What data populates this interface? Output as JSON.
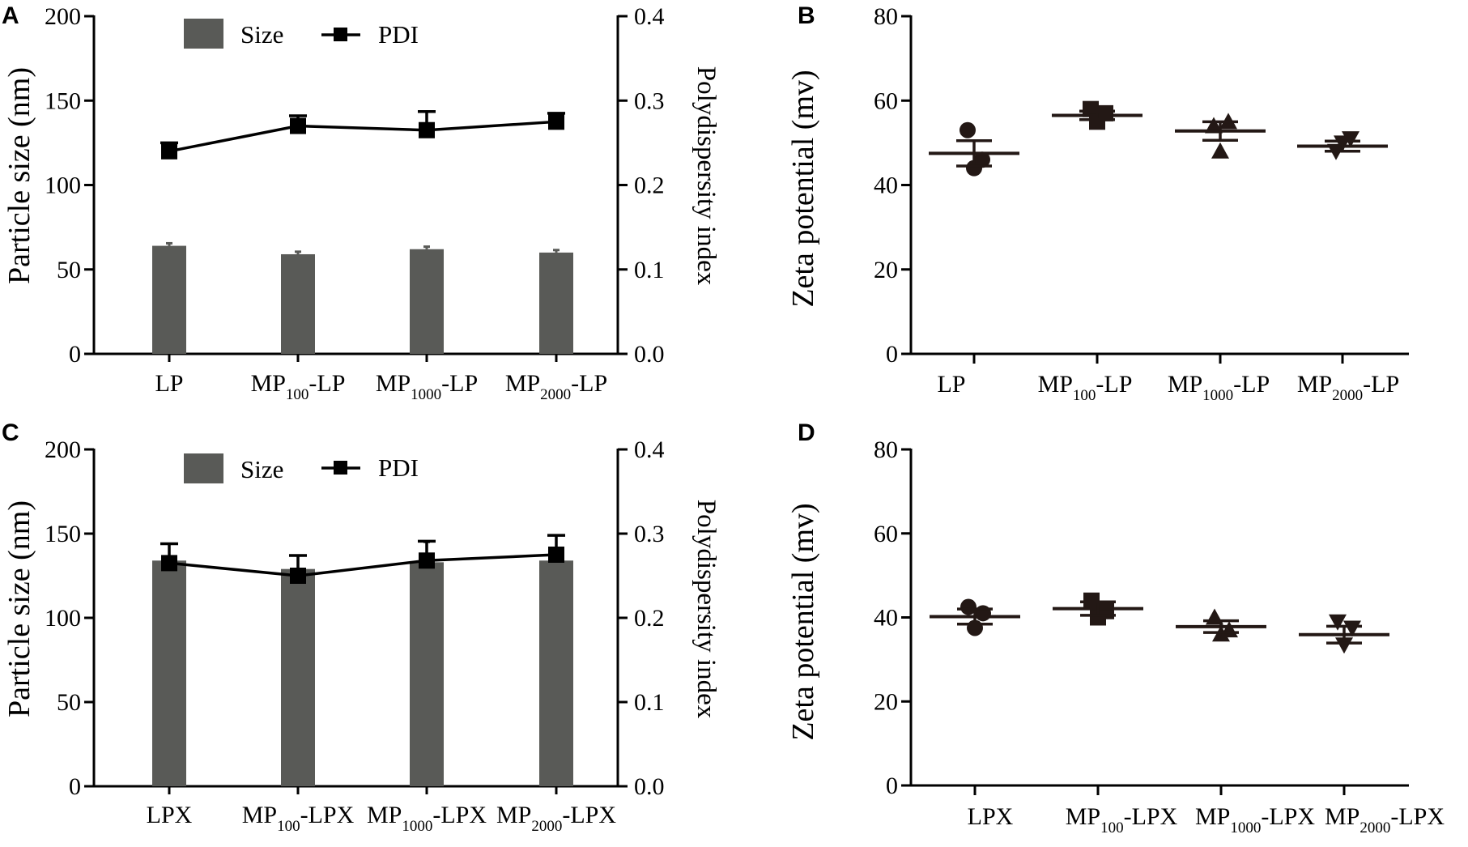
{
  "colors": {
    "bar": "#595a57",
    "line": "#000000",
    "marker": "#231815",
    "background": "#ffffff"
  },
  "chart_data": [
    {
      "panel": "A",
      "type": "bar",
      "categories": [
        {
          "main": "LP",
          "sub": "",
          "suffix": ""
        },
        {
          "main": "MP",
          "sub": "100",
          "suffix": "-LP"
        },
        {
          "main": "MP",
          "sub": "1000",
          "suffix": "-LP"
        },
        {
          "main": "MP",
          "sub": "2000",
          "suffix": "-LP"
        }
      ],
      "series": [
        {
          "name": "Size",
          "axis": "left",
          "kind": "bar",
          "values": [
            64,
            59,
            62,
            60
          ],
          "errors": [
            1.5,
            1.5,
            1.5,
            1.5
          ]
        },
        {
          "name": "PDI",
          "axis": "right",
          "kind": "line",
          "values": [
            0.24,
            0.27,
            0.265,
            0.275
          ],
          "errors": [
            0.01,
            0.012,
            0.022,
            0.01
          ]
        }
      ],
      "ylabel": "Particle size (nm)",
      "ylabel_right": "Polydispersity index",
      "ylim": [
        0,
        200
      ],
      "yticks": [
        "0",
        "50",
        "100",
        "150",
        "200"
      ],
      "ylim_right": [
        0,
        0.4
      ],
      "yticks_right": [
        "0.0",
        "0.1",
        "0.2",
        "0.3",
        "0.4"
      ],
      "legend": [
        "Size",
        "PDI"
      ],
      "legend_position": "top-left"
    },
    {
      "panel": "B",
      "type": "scatter",
      "categories": [
        {
          "main": "LP",
          "sub": "",
          "suffix": ""
        },
        {
          "main": "MP",
          "sub": "100",
          "suffix": "-LP"
        },
        {
          "main": "MP",
          "sub": "1000",
          "suffix": "-LP"
        },
        {
          "main": "MP",
          "sub": "2000",
          "suffix": "-LP"
        }
      ],
      "markers": [
        "circle",
        "square",
        "triangle-up",
        "triangle-down"
      ],
      "points": [
        [
          53,
          44,
          46
        ],
        [
          58,
          55,
          57
        ],
        [
          54,
          48,
          55
        ],
        [
          48,
          50,
          51
        ]
      ],
      "means": [
        47.5,
        56.5,
        52.8,
        49.2
      ],
      "errors": [
        3,
        1,
        2.2,
        1.2
      ],
      "ylabel": "Zeta potential (mv)",
      "ylim": [
        0,
        80
      ],
      "yticks": [
        "0",
        "20",
        "40",
        "60",
        "80"
      ]
    },
    {
      "panel": "C",
      "type": "bar",
      "categories": [
        {
          "main": "LPX",
          "sub": "",
          "suffix": ""
        },
        {
          "main": "MP",
          "sub": "100",
          "suffix": "-LPX"
        },
        {
          "main": "MP",
          "sub": "1000",
          "suffix": "-LPX"
        },
        {
          "main": "MP",
          "sub": "2000",
          "suffix": "-LPX"
        }
      ],
      "series": [
        {
          "name": "Size",
          "axis": "left",
          "kind": "bar",
          "values": [
            134,
            129,
            133,
            134
          ],
          "errors": [
            10,
            8,
            12,
            15
          ]
        },
        {
          "name": "PDI",
          "axis": "right",
          "kind": "line",
          "values": [
            0.265,
            0.25,
            0.268,
            0.275
          ],
          "errors": [
            0.023,
            0.024,
            0.023,
            0.023
          ]
        }
      ],
      "ylabel": "Particle size (nm)",
      "ylabel_right": "Polydispersity index",
      "ylim": [
        0,
        200
      ],
      "yticks": [
        "0",
        "50",
        "100",
        "150",
        "200"
      ],
      "ylim_right": [
        0,
        0.4
      ],
      "yticks_right": [
        "0.0",
        "0.1",
        "0.2",
        "0.3",
        "0.4"
      ],
      "legend": [
        "Size",
        "PDI"
      ],
      "legend_position": "top-left"
    },
    {
      "panel": "D",
      "type": "scatter",
      "categories": [
        {
          "main": "LPX",
          "sub": "",
          "suffix": ""
        },
        {
          "main": "MP",
          "sub": "100",
          "suffix": "-LPX"
        },
        {
          "main": "MP",
          "sub": "1000",
          "suffix": "-LPX"
        },
        {
          "main": "MP",
          "sub": "2000",
          "suffix": "-LPX"
        }
      ],
      "markers": [
        "circle",
        "square",
        "triangle-up",
        "triangle-down"
      ],
      "points": [
        [
          42.5,
          37.5,
          41
        ],
        [
          44,
          40,
          41.5
        ],
        [
          40,
          36,
          37
        ],
        [
          39,
          33.5,
          37.5
        ]
      ],
      "means": [
        40.2,
        42.1,
        37.8,
        35.9
      ],
      "errors": [
        1.8,
        1.6,
        1.4,
        2.0
      ],
      "ylabel": "Zeta potential (mv)",
      "ylim": [
        0,
        80
      ],
      "yticks": [
        "0",
        "20",
        "40",
        "60",
        "80"
      ]
    }
  ]
}
